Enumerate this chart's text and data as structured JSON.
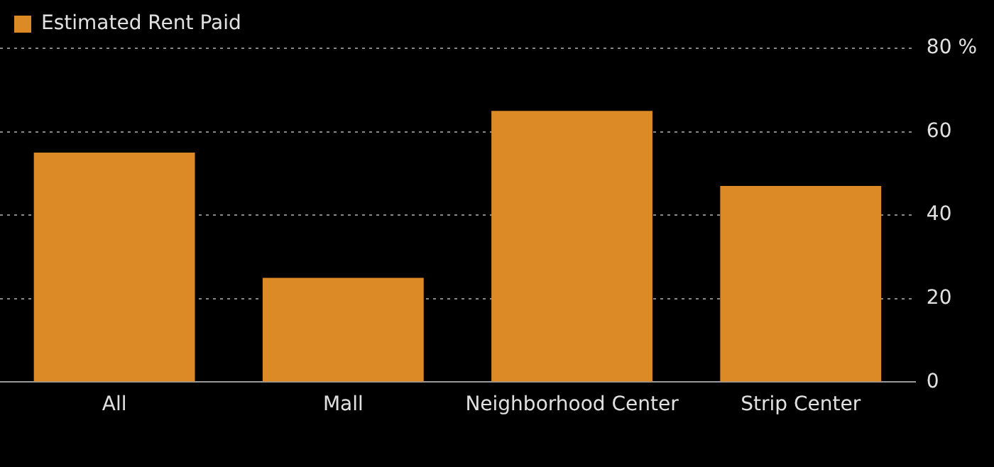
{
  "chart_data": {
    "type": "bar",
    "categories": [
      "All",
      "Mall",
      "Neighborhood Center",
      "Strip Center"
    ],
    "series": [
      {
        "name": "Estimated Rent Paid",
        "color": "#dc8a26",
        "values": [
          55,
          25,
          65,
          47
        ]
      }
    ],
    "ylim": [
      0,
      80
    ],
    "yticks": [
      0,
      20,
      40,
      60,
      {
        "value": 80,
        "label": "80 %"
      }
    ],
    "grid": "y",
    "legend": "top left"
  }
}
